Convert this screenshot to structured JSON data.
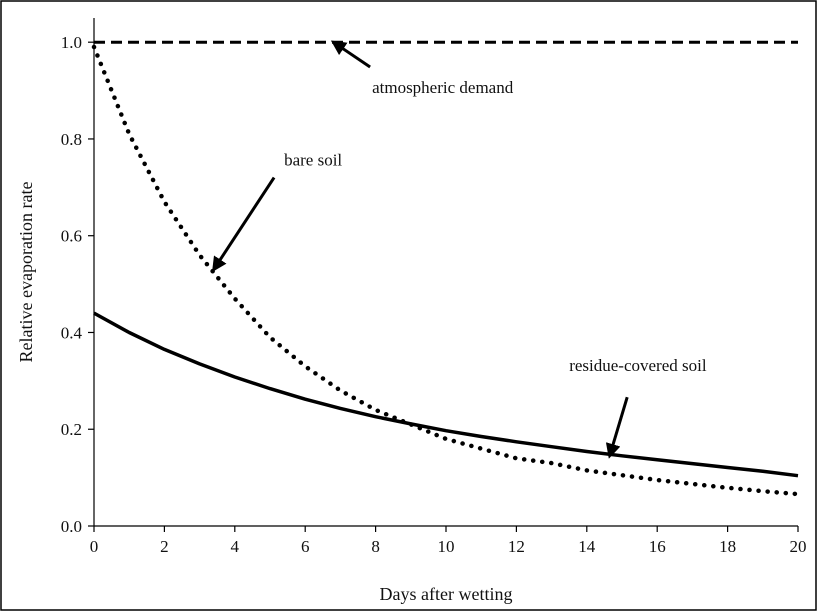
{
  "chart_data": {
    "type": "line",
    "xlabel": "Days after wetting",
    "ylabel": "Relative evaporation rate",
    "xlim": [
      0,
      20
    ],
    "ylim": [
      0,
      1.05
    ],
    "x_ticks": [
      0,
      2,
      4,
      6,
      8,
      10,
      12,
      14,
      16,
      18,
      20
    ],
    "x_tick_labels": [
      "0",
      "2",
      "4",
      "6",
      "8",
      "10",
      "12",
      "14",
      "16",
      "18",
      "20"
    ],
    "y_ticks": [
      0,
      0.2,
      0.4,
      0.6,
      0.8,
      1.0
    ],
    "y_tick_labels": [
      "0.0",
      "0.2",
      "0.4",
      "0.6",
      "0.8",
      "1.0"
    ],
    "grid": false,
    "legend": "none",
    "x": [
      0,
      1,
      2,
      3,
      4,
      5,
      6,
      7,
      8,
      9,
      10,
      11,
      12,
      13,
      14,
      15,
      16,
      17,
      18,
      19,
      20
    ],
    "series": [
      {
        "key": "atmospheric",
        "style": "dashed",
        "color": "#000000",
        "values": [
          1.0,
          1.0,
          1.0,
          1.0,
          1.0,
          1.0,
          1.0,
          1.0,
          1.0,
          1.0,
          1.0,
          1.0,
          1.0,
          1.0,
          1.0,
          1.0,
          1.0,
          1.0,
          1.0,
          1.0,
          1.0
        ]
      },
      {
        "key": "bare",
        "style": "dotted",
        "color": "#000000",
        "values": [
          0.99,
          0.81,
          0.67,
          0.56,
          0.47,
          0.39,
          0.33,
          0.28,
          0.24,
          0.21,
          0.18,
          0.16,
          0.14,
          0.13,
          0.115,
          0.105,
          0.095,
          0.087,
          0.079,
          0.072,
          0.066
        ]
      },
      {
        "key": "residue",
        "style": "solid",
        "color": "#000000",
        "values": [
          0.44,
          0.4,
          0.365,
          0.335,
          0.308,
          0.284,
          0.262,
          0.243,
          0.226,
          0.211,
          0.197,
          0.185,
          0.174,
          0.164,
          0.154,
          0.145,
          0.137,
          0.129,
          0.121,
          0.113,
          0.104
        ]
      }
    ],
    "annotations": [
      {
        "text": "atmospheric demand",
        "x": 7.9,
        "y": 0.895,
        "anchor": "start",
        "arrow_to": [
          6.8,
          1.0
        ]
      },
      {
        "text": "bare soil",
        "x": 5.4,
        "y": 0.745,
        "anchor": "start",
        "arrow_to": [
          3.4,
          0.53
        ]
      },
      {
        "text": "residue-covered soil",
        "x": 13.5,
        "y": 0.32,
        "anchor": "start",
        "arrow_to": [
          14.65,
          0.145
        ]
      }
    ]
  }
}
